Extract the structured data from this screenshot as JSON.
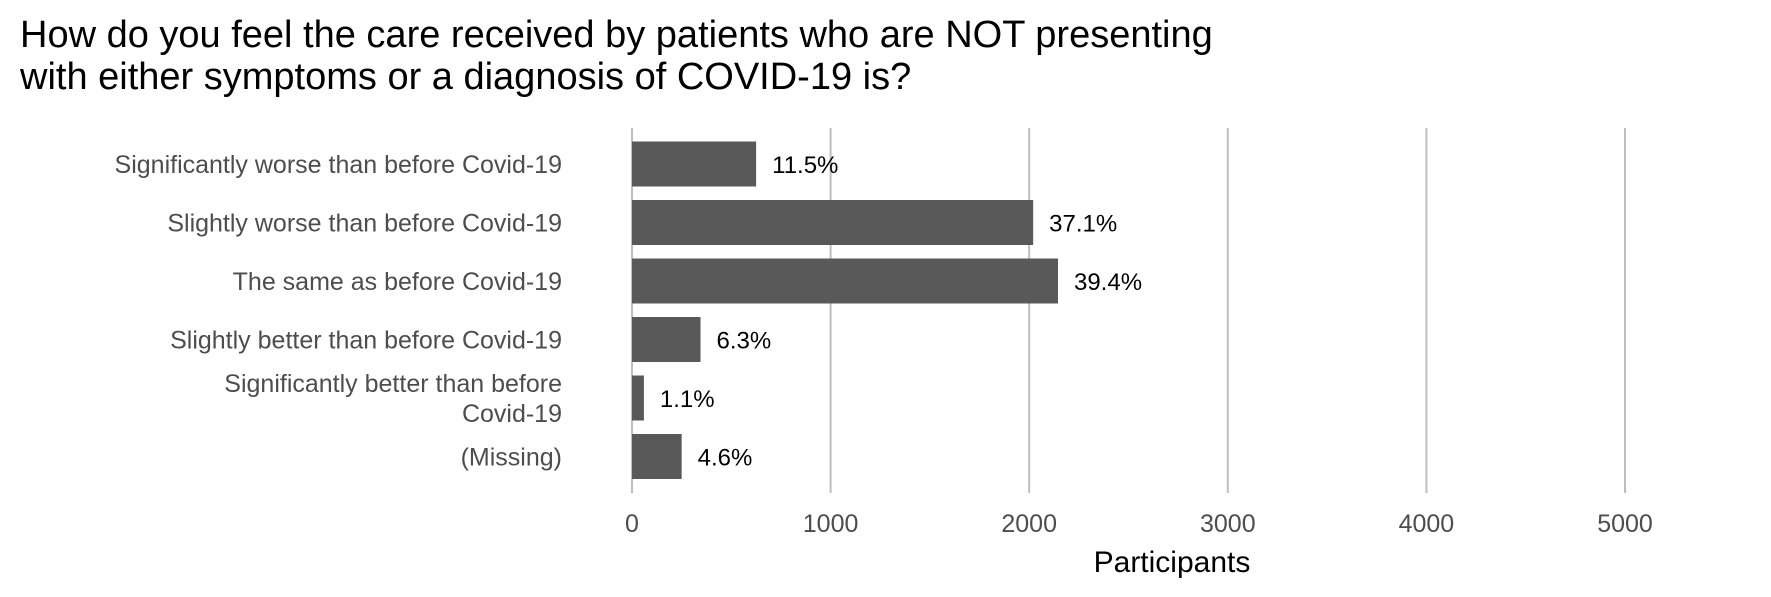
{
  "chart_data": {
    "type": "bar",
    "orientation": "horizontal",
    "title_lines": [
      "How do you feel the care received by patients who are NOT presenting",
      "with either symptoms or a diagnosis of COVID-19 is?"
    ],
    "categories": [
      [
        "Significantly worse than before Covid-19"
      ],
      [
        "Slightly worse than before Covid-19"
      ],
      [
        "The same as before Covid-19"
      ],
      [
        "Slightly better than before Covid-19"
      ],
      [
        "Significantly better than before",
        "Covid-19"
      ],
      [
        "(Missing)"
      ]
    ],
    "values": [
      625,
      2020,
      2145,
      345,
      60,
      250
    ],
    "data_labels": [
      "11.5%",
      "37.1%",
      "39.4%",
      "6.3%",
      "1.1%",
      "4.6%"
    ],
    "xlabel": "Participants",
    "xlim": [
      0,
      5750
    ],
    "x_ticks": [
      0,
      1000,
      2000,
      3000,
      4000,
      5000
    ],
    "grid": "vertical",
    "bar_color": "#595959",
    "grid_color": "#bebebe",
    "legend": "none"
  }
}
